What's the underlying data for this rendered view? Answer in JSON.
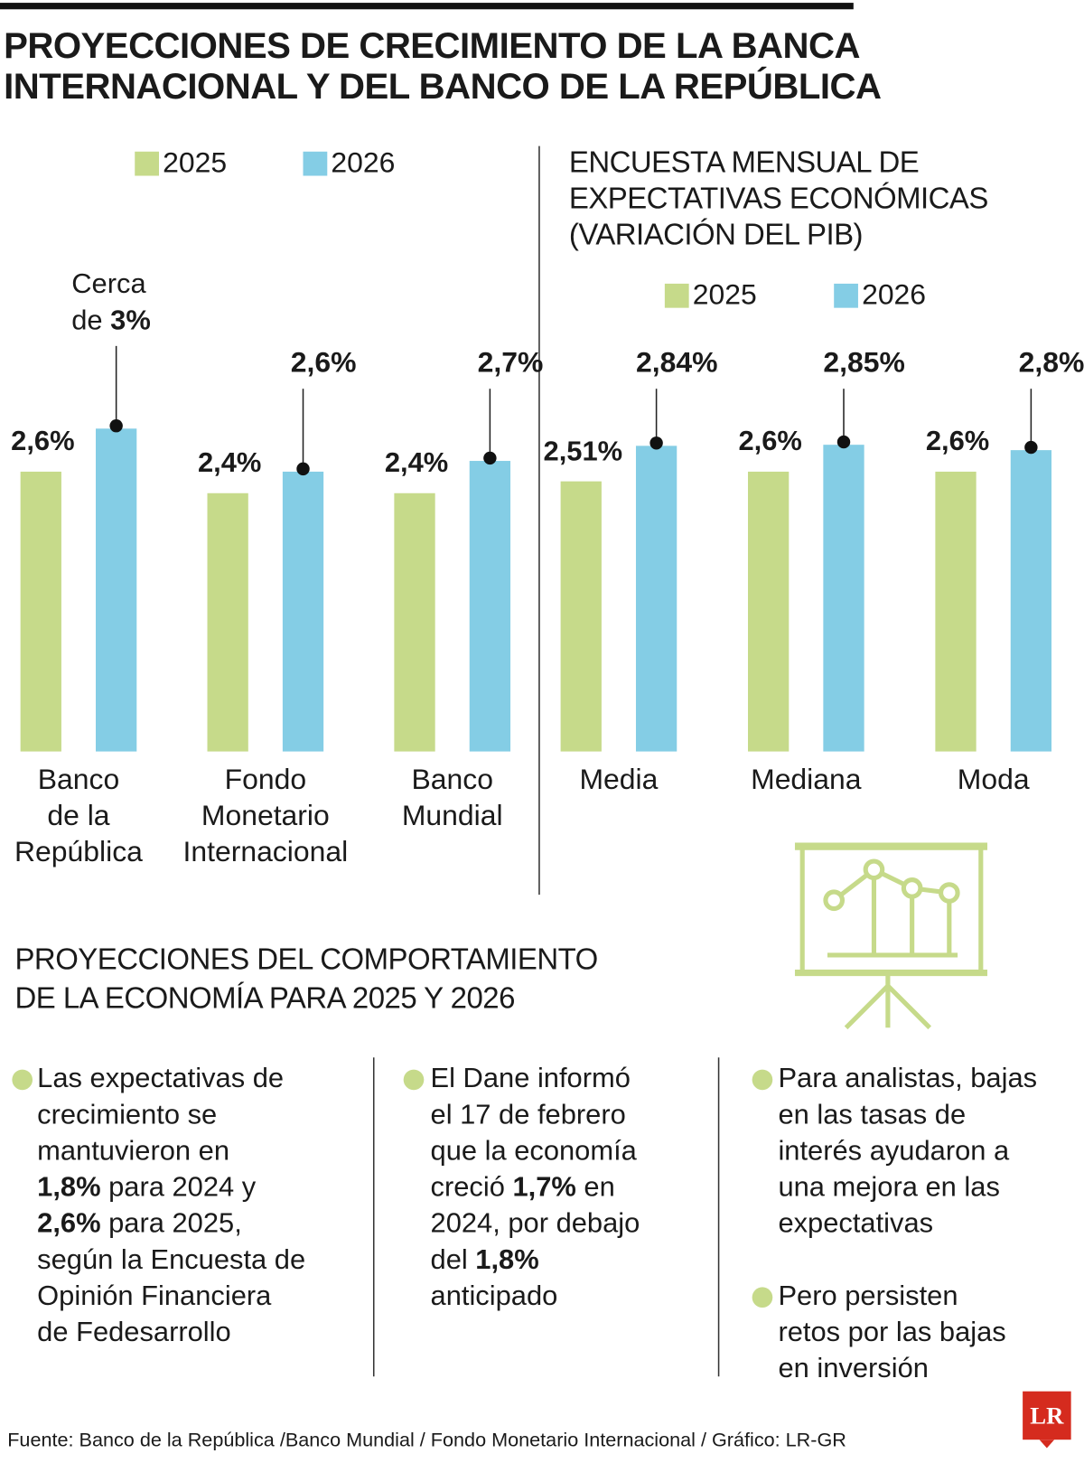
{
  "title": "PROYECCIONES DE CRECIMIENTO DE LA BANCA\nINTERNACIONAL Y DEL BANCO DE LA REPÚBLICA",
  "chart_data": [
    {
      "type": "bar",
      "categories": [
        "Banco\nde la\nRepública",
        "Fondo\nMonetario\nInternacional",
        "Banco\nMundial"
      ],
      "series": [
        {
          "name": "2025",
          "color": "#c6da8a",
          "values": [
            2.6,
            2.4,
            2.4
          ],
          "value_labels": [
            "2,6%",
            "2,4%",
            "2,4%"
          ]
        },
        {
          "name": "2026",
          "color": "#84cde5",
          "values": [
            3,
            2.6,
            2.7
          ],
          "value_labels": [
            "Cerca\nde 3%",
            "2,6%",
            "2,7%"
          ]
        }
      ],
      "ylim": [
        0,
        3.5
      ]
    },
    {
      "type": "bar",
      "title": "ENCUESTA MENSUAL DE\nEXPECTATIVAS ECONÓMICAS\n(VARIACIÓN DEL PIB)",
      "categories": [
        "Media",
        "Mediana",
        "Moda"
      ],
      "series": [
        {
          "name": "2025",
          "color": "#c6da8a",
          "values": [
            2.51,
            2.6,
            2.6
          ],
          "value_labels": [
            "2,51%",
            "2,6%",
            "2,6%"
          ]
        },
        {
          "name": "2026",
          "color": "#84cde5",
          "values": [
            2.84,
            2.85,
            2.8
          ],
          "value_labels": [
            "2,84%",
            "2,85%",
            "2,8%"
          ]
        }
      ],
      "ylim": [
        0,
        3.5
      ]
    }
  ],
  "section_title": "PROYECCIONES DEL COMPORTAMIENTO\nDE LA ECONOMÍA PARA 2025 Y 2026",
  "columns": [
    [
      "Las expectativas de\ncrecimiento se\nmantuvieron en\n1,8% para 2024 y\n2,6% para 2025,\nsegún la Encuesta de\nOpinión Financiera\nde Fedesarrollo"
    ],
    [
      "El Dane informó\nel 17 de febrero\nque la economía\ncreció 1,7% en\n2024, por debajo\ndel 1,8%\nanticipado"
    ],
    [
      "Para analistas, bajas\nen las tasas de\ninterés ayudaron a\nuna mejora en las\nexpectativas",
      "Pero persisten\nretos por las bajas\nen inversión"
    ]
  ],
  "source": "Fuente: Banco de la República /Banco Mundial / Fondo Monetario Internacional / Gráfico: LR-GR",
  "logo": "LR"
}
